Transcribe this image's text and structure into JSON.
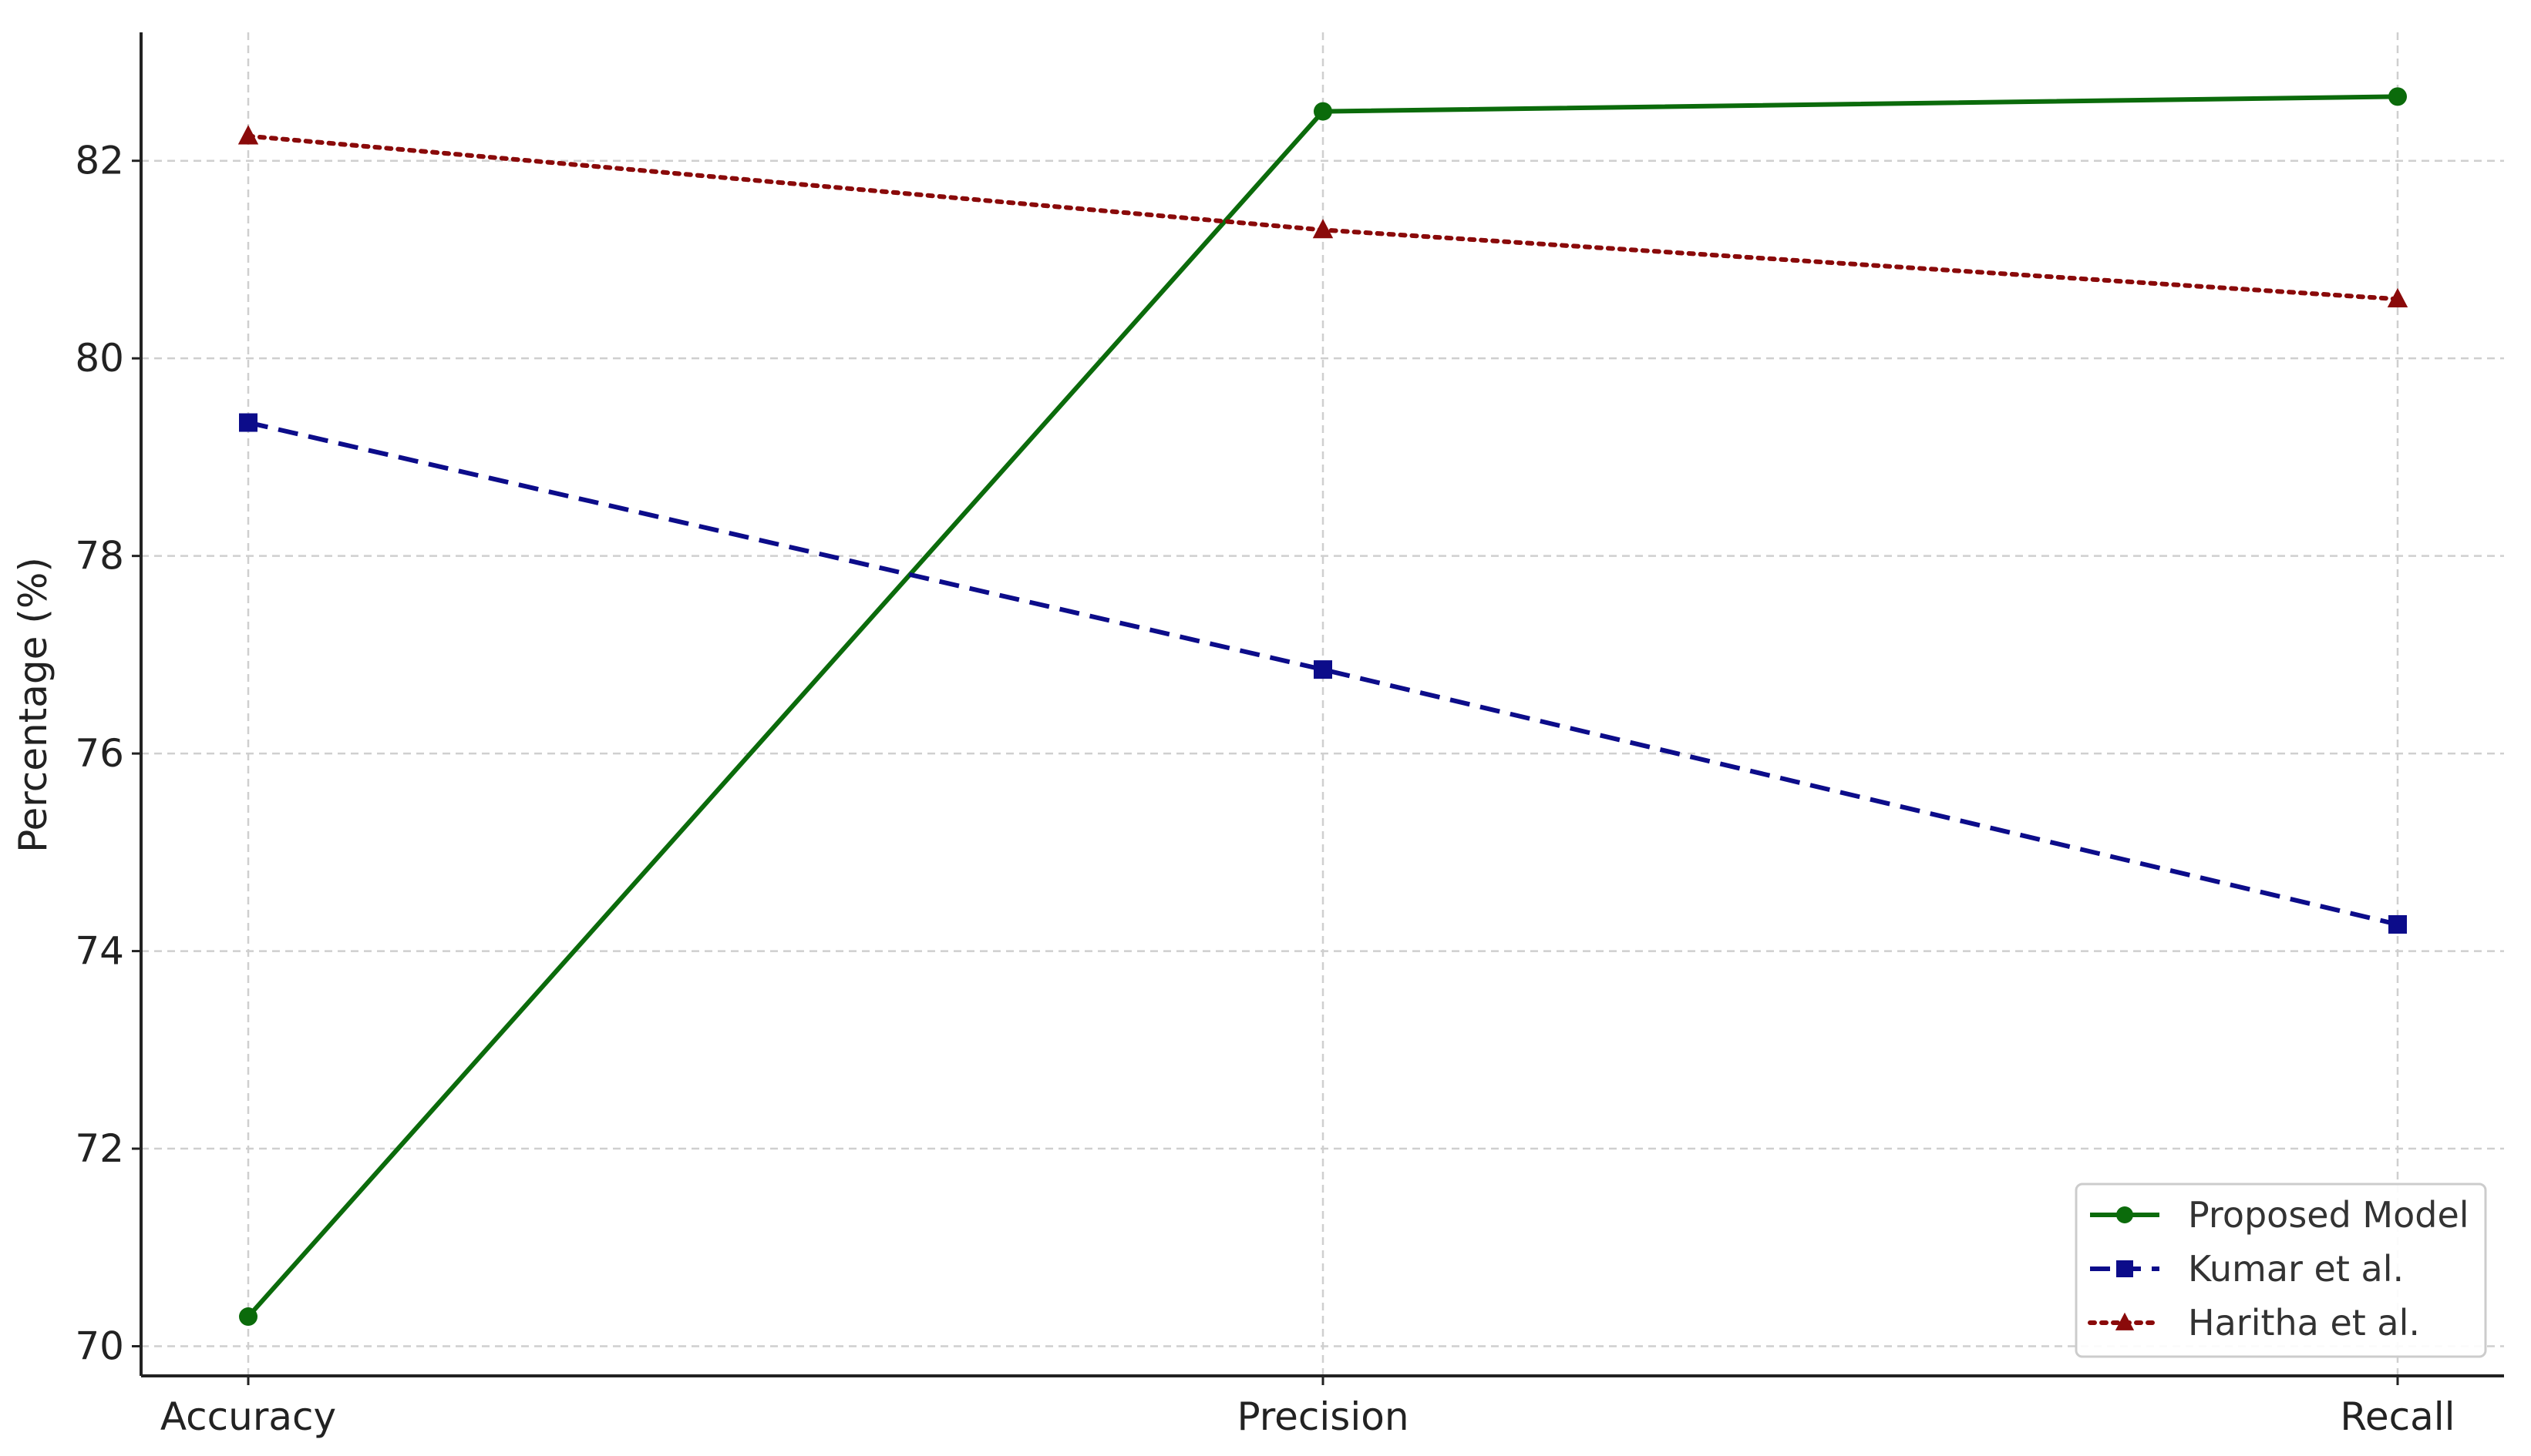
{
  "chart_data": {
    "type": "line",
    "categories": [
      "Accuracy",
      "Precision",
      "Recall"
    ],
    "ylabel": "Percentage (%)",
    "xlabel": "",
    "ylim": [
      69.7,
      83.3
    ],
    "yticks": [
      70,
      72,
      74,
      76,
      78,
      80,
      82
    ],
    "grid": true,
    "legend_position": "bottom-right",
    "series": [
      {
        "name": "Proposed Model",
        "values": [
          70.3,
          82.5,
          82.65
        ],
        "color": "#0b6b0b",
        "line_style": "solid",
        "marker": "circle"
      },
      {
        "name": "Kumar et al.",
        "values": [
          79.35,
          76.85,
          74.27
        ],
        "color": "#0c0c8a",
        "line_style": "dashed",
        "marker": "square"
      },
      {
        "name": "Haritha et al.",
        "values": [
          82.25,
          81.3,
          80.6
        ],
        "color": "#8a0a0a",
        "line_style": "dotted",
        "marker": "triangle"
      }
    ]
  }
}
